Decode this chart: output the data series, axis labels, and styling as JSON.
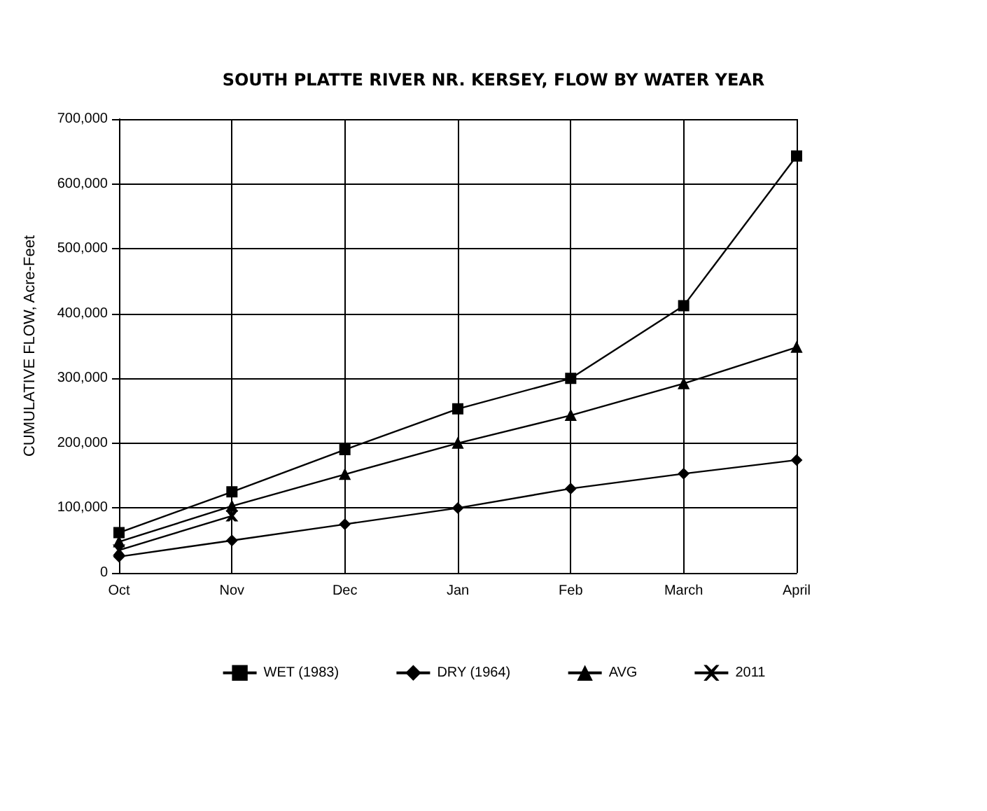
{
  "chart_data": {
    "type": "line",
    "title": "SOUTH PLATTE RIVER NR. KERSEY, FLOW BY WATER YEAR",
    "ylabel": "CUMULATIVE FLOW, Acre-Feet",
    "categories": [
      "Oct",
      "Nov",
      "Dec",
      "Jan",
      "Feb",
      "March",
      "April"
    ],
    "series": [
      {
        "name": "WET (1983)",
        "color": "#000000",
        "marker": "square",
        "values": [
          62000,
          125000,
          190000,
          253000,
          300000,
          412000,
          643000
        ]
      },
      {
        "name": "DRY (1964)",
        "color": "#000000",
        "marker": "diamond",
        "values": [
          25000,
          50000,
          75000,
          100000,
          130000,
          153000,
          174000
        ]
      },
      {
        "name": "AVG",
        "color": "#000000",
        "marker": "triangle",
        "values": [
          48000,
          103000,
          152000,
          200000,
          243000,
          292000,
          348000
        ]
      },
      {
        "name": "2011",
        "color": "#000000",
        "marker": "cross",
        "values": [
          35000,
          88000,
          null,
          null,
          null,
          null,
          null
        ]
      }
    ],
    "ylim": [
      0,
      700000
    ],
    "yticks": [
      0,
      {
        "value": 100000,
        "label": "100,000"
      },
      {
        "value": 200000,
        "label": "200,000"
      },
      {
        "value": 300000,
        "label": "300,000"
      },
      {
        "value": 400000,
        "label": "400,000"
      },
      {
        "value": 500000,
        "label": "500,000"
      },
      {
        "value": 600000,
        "label": "600,000"
      },
      {
        "value": 700000,
        "label": "700,000"
      }
    ],
    "grid": true,
    "legend": "bottom",
    "line_style": "solid"
  }
}
